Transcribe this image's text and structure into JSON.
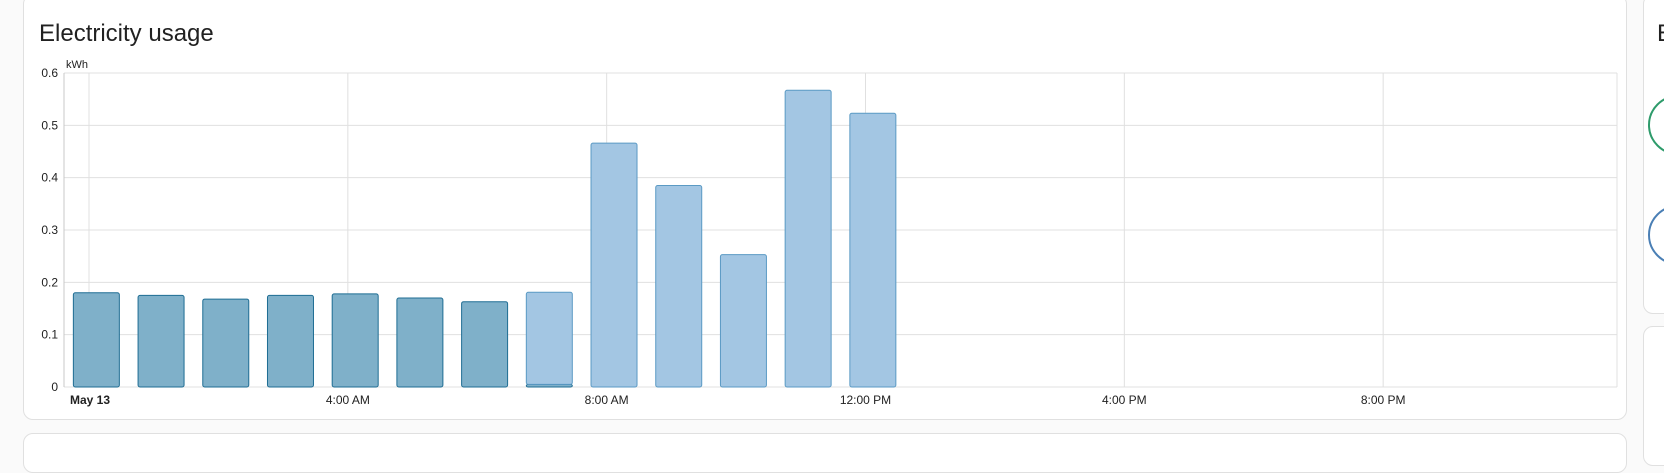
{
  "card": {
    "title": "Electricity usage"
  },
  "side": {
    "title_letter": "E"
  },
  "chart_data": {
    "type": "bar",
    "ylabel": "kWh",
    "ylim": [
      0,
      0.6
    ],
    "yticks": [
      "0",
      "0.1",
      "0.2",
      "0.3",
      "0.4",
      "0.5",
      "0.6"
    ],
    "xlim": [
      0,
      24
    ],
    "xticks": [
      {
        "hour": 0,
        "label": "May 13",
        "bold": true
      },
      {
        "hour": 4,
        "label": "4:00 AM",
        "bold": false
      },
      {
        "hour": 8,
        "label": "8:00 AM",
        "bold": false
      },
      {
        "hour": 12,
        "label": "12:00 PM",
        "bold": false
      },
      {
        "hour": 16,
        "label": "4:00 PM",
        "bold": false
      },
      {
        "hour": 20,
        "label": "8:00 PM",
        "bold": false
      }
    ],
    "x": [
      "00:00",
      "01:00",
      "02:00",
      "03:00",
      "04:00",
      "05:00",
      "06:00",
      "07:00",
      "08:00",
      "09:00",
      "10:00",
      "11:00",
      "12:00"
    ],
    "series": [
      {
        "fill": "#7fb0c9",
        "stroke": "#1f6d93",
        "values": [
          0.18,
          0.175,
          0.168,
          0.175,
          0.178,
          0.17,
          0.163,
          0.005,
          0,
          0,
          0,
          0,
          0
        ]
      },
      {
        "fill": "#a3c6e3",
        "stroke": "#5b9ac4",
        "values": [
          0,
          0,
          0,
          0,
          0,
          0,
          0,
          0.176,
          0.466,
          0.385,
          0.253,
          0.567,
          0.523
        ]
      }
    ],
    "grid": true,
    "grid_color": "#e0e0e0",
    "side_ring_colors": [
      "#2e9b6b",
      "#4a7fb5"
    ]
  }
}
